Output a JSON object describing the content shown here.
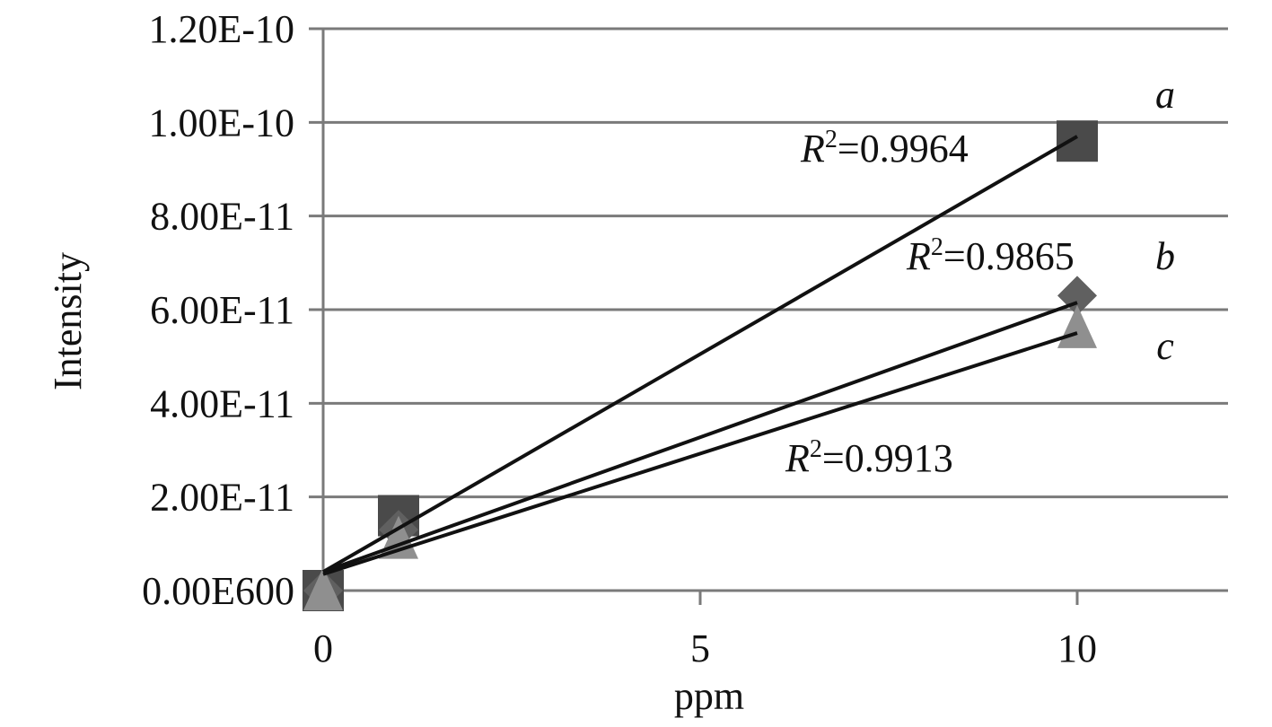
{
  "chart_data": {
    "type": "scatter",
    "xlabel": "ppm",
    "ylabel": "Intensity",
    "xlim": [
      0,
      12
    ],
    "ylim": [
      0,
      1.2e-10
    ],
    "xticks": [
      {
        "value": 0,
        "label": "0"
      },
      {
        "value": 5,
        "label": "5"
      },
      {
        "value": 10,
        "label": "10"
      }
    ],
    "yticks": [
      {
        "value": 0,
        "label": "0.00E600"
      },
      {
        "value": 2e-11,
        "label": "2.00E-11"
      },
      {
        "value": 4e-11,
        "label": "4.00E-11"
      },
      {
        "value": 6e-11,
        "label": "6.00E-11"
      },
      {
        "value": 8e-11,
        "label": "8.00E-11"
      },
      {
        "value": 1e-10,
        "label": "1.00E-10"
      },
      {
        "value": 1.2e-10,
        "label": "1.20E-10"
      }
    ],
    "grid": "horizontal",
    "series": [
      {
        "name": "a",
        "marker": "square",
        "color": "#4a4a4a",
        "x": [
          0,
          1,
          10
        ],
        "y": [
          0,
          1.6e-11,
          9.6e-11
        ],
        "trendline": {
          "x": [
            0,
            10
          ],
          "y": [
            4e-12,
            9.7e-11
          ]
        },
        "r2_label": {
          "prefix": "R",
          "sup": "2",
          "rest": "=0.9964"
        }
      },
      {
        "name": "b",
        "marker": "diamond",
        "color": "#606060",
        "x": [
          0,
          1,
          10
        ],
        "y": [
          0,
          1.3e-11,
          6.3e-11
        ],
        "trendline": {
          "x": [
            0,
            10
          ],
          "y": [
            4e-12,
            6.15e-11
          ]
        },
        "r2_label": {
          "prefix": "R",
          "sup": "2",
          "rest": "=0.9865"
        }
      },
      {
        "name": "c",
        "marker": "triangle",
        "color": "#8f8f8f",
        "x": [
          0,
          1,
          10
        ],
        "y": [
          0,
          1.1e-11,
          5.6e-11
        ],
        "trendline": {
          "x": [
            0,
            10
          ],
          "y": [
            3.5e-12,
            5.5e-11
          ]
        },
        "r2_label": {
          "prefix": "R",
          "sup": "2",
          "rest": "=0.9913"
        }
      }
    ]
  }
}
